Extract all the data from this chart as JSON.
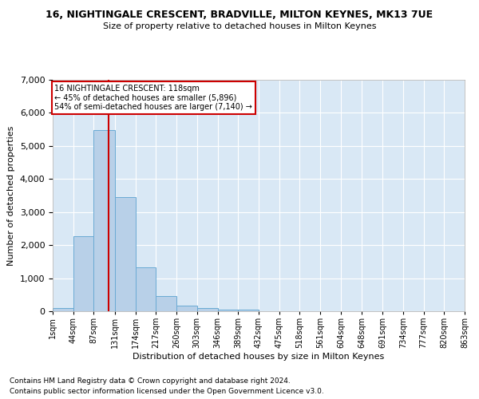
{
  "title": "16, NIGHTINGALE CRESCENT, BRADVILLE, MILTON KEYNES, MK13 7UE",
  "subtitle": "Size of property relative to detached houses in Milton Keynes",
  "xlabel": "Distribution of detached houses by size in Milton Keynes",
  "ylabel": "Number of detached properties",
  "footnote1": "Contains HM Land Registry data © Crown copyright and database right 2024.",
  "footnote2": "Contains public sector information licensed under the Open Government Licence v3.0.",
  "bin_edges": [
    1,
    44,
    87,
    131,
    174,
    217,
    260,
    303,
    346,
    389,
    432,
    475,
    518,
    561,
    604,
    648,
    691,
    734,
    777,
    820,
    863
  ],
  "bar_heights": [
    100,
    2280,
    5480,
    3450,
    1320,
    470,
    160,
    90,
    60,
    40,
    0,
    0,
    0,
    0,
    0,
    0,
    0,
    0,
    0,
    0
  ],
  "bar_color": "#b8d0e8",
  "bar_edge_color": "#6aaad4",
  "background_color": "#d9e8f5",
  "grid_color": "#ffffff",
  "red_line_x": 118,
  "annotation_text": "16 NIGHTINGALE CRESCENT: 118sqm\n← 45% of detached houses are smaller (5,896)\n54% of semi-detached houses are larger (7,140) →",
  "annotation_box_color": "#ffffff",
  "annotation_border_color": "#cc0000",
  "ylim": [
    0,
    7000
  ],
  "yticks": [
    0,
    1000,
    2000,
    3000,
    4000,
    5000,
    6000,
    7000
  ],
  "tick_labels": [
    "1sqm",
    "44sqm",
    "87sqm",
    "131sqm",
    "174sqm",
    "217sqm",
    "260sqm",
    "303sqm",
    "346sqm",
    "389sqm",
    "432sqm",
    "475sqm",
    "518sqm",
    "561sqm",
    "604sqm",
    "648sqm",
    "691sqm",
    "734sqm",
    "777sqm",
    "820sqm",
    "863sqm"
  ]
}
